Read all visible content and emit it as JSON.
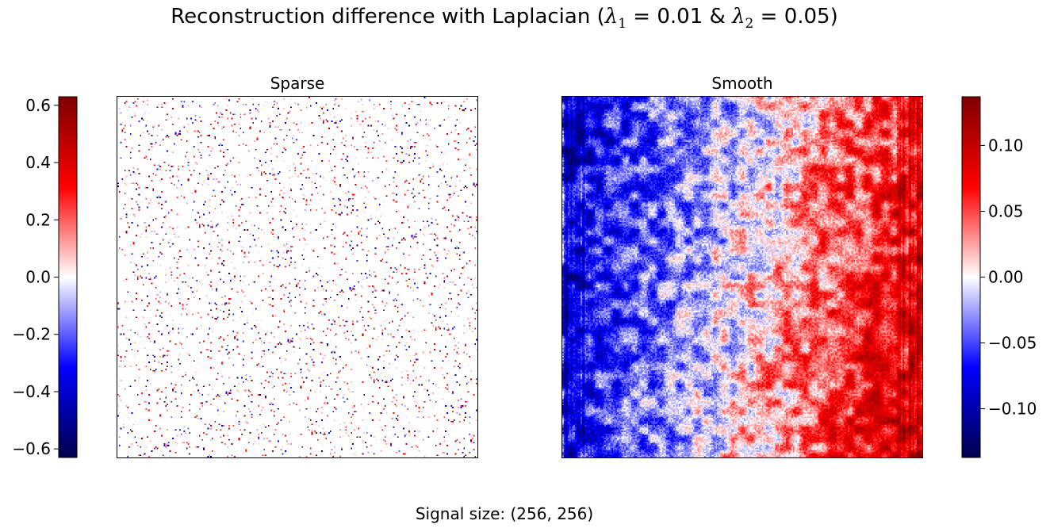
{
  "figure": {
    "title_prefix": "Reconstruction difference with Laplacian (",
    "lambda1_symbol": "λ",
    "lambda1_sub": "1",
    "lambda1_value": " = 0.01 & ",
    "lambda2_symbol": "λ",
    "lambda2_sub": "2",
    "lambda2_value": " = 0.05)",
    "footer": "Signal size: (256, 256)"
  },
  "colors": {
    "cmap_name": "seismic",
    "cmap_stops": [
      "#00004c",
      "#0000ff",
      "#ffffff",
      "#ff0000",
      "#7f0000"
    ],
    "frame": "#000000"
  },
  "chart_data": [
    {
      "type": "heatmap",
      "title": "Sparse",
      "signal_size": [
        256,
        256
      ],
      "colorbar": {
        "range": [
          -0.63,
          0.63
        ],
        "ticks": [
          -0.6,
          -0.4,
          -0.2,
          0.0,
          0.2,
          0.4,
          0.6
        ],
        "tick_labels": [
          "−0.6",
          "−0.4",
          "−0.2",
          "0.0",
          "0.2",
          "0.4",
          "0.6"
        ],
        "placement": "left"
      },
      "pattern": "sparse isolated impulses (about 5% of pixels), mostly positive red with fewer negative blue, on a near-zero background",
      "approx_fraction_nonzero": 0.05,
      "value_range": [
        -0.63,
        0.63
      ],
      "axes_ticks": "none"
    },
    {
      "type": "heatmap",
      "title": "Smooth",
      "signal_size": [
        256,
        256
      ],
      "colorbar": {
        "range": [
          -0.137,
          0.137
        ],
        "ticks": [
          -0.1,
          -0.05,
          0.0,
          0.05,
          0.1
        ],
        "tick_labels": [
          "−0.10",
          "−0.05",
          "0.00",
          "0.05",
          "0.10"
        ],
        "placement": "right"
      },
      "pattern": "smooth gradient from negative (blue) on the left/top-left to positive (red) on the bottom-right, with fine blob texture and vertical streaks near left and right edges",
      "corner_values": {
        "top_left": -0.1,
        "top_right": 0.08,
        "bottom_left": -0.09,
        "bottom_right": 0.12
      },
      "axes_ticks": "none"
    }
  ]
}
